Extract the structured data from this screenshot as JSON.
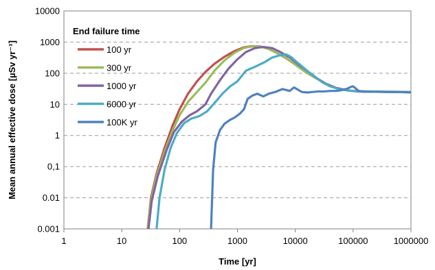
{
  "chart_data": {
    "type": "line",
    "title": "",
    "xlabel": "Time [yr]",
    "ylabel": "Mean annual effective dose [µSv yr⁻¹]",
    "xscale": "log",
    "yscale": "log",
    "xlim": [
      1,
      1000000
    ],
    "ylim": [
      0.001,
      10000
    ],
    "grid": "horizontal dashed",
    "x_ticks": [
      {
        "value": 1,
        "label": "1"
      },
      {
        "value": 10,
        "label": "10"
      },
      {
        "value": 100,
        "label": "100"
      },
      {
        "value": 1000,
        "label": "1000"
      },
      {
        "value": 10000,
        "label": "10000"
      },
      {
        "value": 100000,
        "label": "100000"
      },
      {
        "value": 1000000,
        "label": "1000000"
      }
    ],
    "y_ticks": [
      {
        "value": 0.001,
        "label": "0.001"
      },
      {
        "value": 0.01,
        "label": "0.01"
      },
      {
        "value": 0.1,
        "label": "0,1"
      },
      {
        "value": 1,
        "label": "1"
      },
      {
        "value": 10,
        "label": "10"
      },
      {
        "value": 100,
        "label": "100"
      },
      {
        "value": 1000,
        "label": "1000"
      },
      {
        "value": 10000,
        "label": "10000"
      }
    ],
    "legend": {
      "title": "End failure time",
      "placement": "top-left"
    },
    "series": [
      {
        "name": "100 yr",
        "color": "#c0504d",
        "x": [
          28,
          32,
          40,
          55,
          75,
          100,
          140,
          200,
          280,
          400,
          600,
          900,
          1300,
          1800,
          2500,
          3500,
          5000,
          7000,
          10000,
          15000,
          22000,
          35000,
          50000,
          80000,
          120000,
          200000,
          500000,
          1000000
        ],
        "y": [
          0.001,
          0.01,
          0.06,
          0.4,
          2.0,
          7,
          22,
          55,
          110,
          200,
          340,
          520,
          680,
          740,
          720,
          600,
          430,
          300,
          190,
          110,
          72,
          45,
          34,
          28,
          26,
          25.5,
          25,
          24.5
        ]
      },
      {
        "name": "300 yr",
        "color": "#9bbb59",
        "x": [
          28,
          32,
          40,
          55,
          75,
          100,
          140,
          200,
          280,
          400,
          600,
          900,
          1300,
          1800,
          2500,
          3500,
          5000,
          7000,
          10000,
          15000,
          22000,
          35000,
          50000,
          80000,
          120000,
          200000,
          500000,
          1000000
        ],
        "y": [
          0.001,
          0.008,
          0.05,
          0.3,
          1.4,
          4.5,
          12,
          25,
          50,
          120,
          260,
          460,
          650,
          730,
          710,
          600,
          430,
          300,
          190,
          110,
          72,
          45,
          34,
          28,
          26,
          25.5,
          25,
          24.5
        ]
      },
      {
        "name": "1000 yr",
        "color": "#8064a2",
        "x": [
          29,
          33,
          42,
          60,
          80,
          110,
          150,
          200,
          280,
          350,
          500,
          700,
          1000,
          1400,
          2000,
          2800,
          4000,
          5500,
          8000,
          11000,
          16000,
          24000,
          35000,
          50000,
          80000,
          120000,
          200000,
          500000,
          1000000
        ],
        "y": [
          0.001,
          0.008,
          0.05,
          0.35,
          1.3,
          2.8,
          4.5,
          6,
          10,
          22,
          60,
          140,
          280,
          480,
          640,
          700,
          640,
          480,
          320,
          200,
          120,
          68,
          44,
          34,
          28,
          26,
          25.5,
          25,
          24.5
        ]
      },
      {
        "name": "6000 yr",
        "color": "#4bacc6",
        "x": [
          40,
          45,
          55,
          70,
          90,
          120,
          160,
          220,
          300,
          400,
          550,
          750,
          1000,
          1400,
          2000,
          3000,
          4000,
          5500,
          7000,
          8500,
          10000,
          12000,
          16000,
          22000,
          30000,
          40000,
          60000,
          100000,
          200000,
          500000,
          1000000
        ],
        "y": [
          0.001,
          0.01,
          0.08,
          0.4,
          1.2,
          2.5,
          3.5,
          4.2,
          6,
          11,
          22,
          38,
          55,
          120,
          160,
          230,
          320,
          380,
          400,
          330,
          250,
          190,
          120,
          75,
          50,
          38,
          30,
          27,
          26,
          25.5,
          25
        ]
      },
      {
        "name": "100K yr",
        "color": "#4f81bd",
        "x": [
          350,
          380,
          420,
          500,
          600,
          750,
          900,
          1100,
          1300,
          1500,
          1800,
          2200,
          2800,
          3500,
          4500,
          6000,
          8000,
          9500,
          11000,
          13000,
          16000,
          20000,
          25000,
          32000,
          40000,
          50000,
          60000,
          70000,
          80000,
          90000,
          100000,
          110000,
          125000,
          150000,
          200000,
          300000,
          500000,
          1000000
        ],
        "y": [
          0.001,
          0.08,
          0.6,
          1.5,
          2.4,
          3.2,
          3.8,
          5,
          7,
          15,
          19,
          22,
          18,
          22,
          25,
          31,
          27,
          35,
          30,
          25,
          24,
          25,
          26,
          26,
          27,
          27,
          28,
          30,
          32,
          36,
          38,
          33,
          27,
          25.5,
          25.5,
          25.2,
          25,
          24.5
        ]
      }
    ]
  }
}
